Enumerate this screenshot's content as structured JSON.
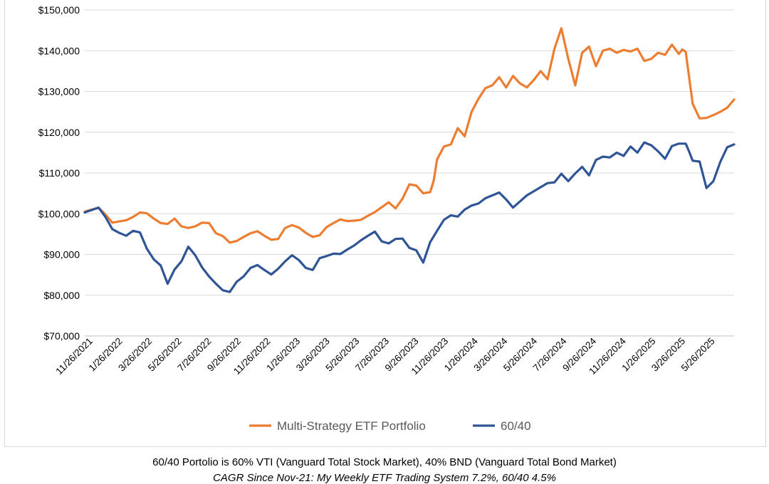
{
  "colors": {
    "multi": "#ED7D31",
    "sixty": "#2F5597",
    "grid": "#d9d9d9",
    "axis": "#bfbfbf"
  },
  "caption": {
    "line1": "60/40 Portolio is 60% VTI (Vanguard Total Stock Market), 40% BND (Vanguard Total Bond Market)",
    "line2": "CAGR Since Nov-21: My Weekly ETF Trading System 7.2%, 60/40 4.5%"
  },
  "chart_data": {
    "type": "line",
    "title": "",
    "xlabel": "",
    "ylabel": "",
    "ylim": [
      70000,
      150000
    ],
    "y_ticks": [
      70000,
      80000,
      90000,
      100000,
      110000,
      120000,
      130000,
      140000,
      150000
    ],
    "y_tick_labels": [
      "$70,000",
      "$80,000",
      "$90,000",
      "$100,000",
      "$110,000",
      "$120,000",
      "$130,000",
      "$140,000",
      "$150,000"
    ],
    "x_tick_labels": [
      "11/26/2021",
      "1/26/2022",
      "3/26/2022",
      "5/26/2022",
      "7/26/2022",
      "9/26/2022",
      "11/26/2022",
      "1/26/2023",
      "3/26/2023",
      "5/26/2023",
      "7/26/2023",
      "9/26/2023",
      "11/26/2023",
      "1/26/2024",
      "3/26/2024",
      "5/26/2024",
      "7/26/2024",
      "9/26/2024",
      "11/26/2024",
      "1/26/2025",
      "3/26/2025",
      "5/26/2025"
    ],
    "x_range": [
      "2021-11-26",
      "2025-07-04"
    ],
    "grid": "horizontal",
    "legend_position": "bottom",
    "series": [
      {
        "name": "Multi-Strategy ETF Portfolio",
        "x": [
          "2021-11-26",
          "2021-12-10",
          "2021-12-24",
          "2022-01-07",
          "2022-01-21",
          "2022-02-04",
          "2022-02-18",
          "2022-03-04",
          "2022-03-18",
          "2022-04-01",
          "2022-04-15",
          "2022-04-29",
          "2022-05-13",
          "2022-05-27",
          "2022-06-10",
          "2022-06-24",
          "2022-07-08",
          "2022-07-22",
          "2022-08-05",
          "2022-08-19",
          "2022-09-02",
          "2022-09-16",
          "2022-09-30",
          "2022-10-14",
          "2022-10-28",
          "2022-11-11",
          "2022-11-25",
          "2022-12-09",
          "2022-12-23",
          "2023-01-06",
          "2023-01-20",
          "2023-02-03",
          "2023-02-17",
          "2023-03-03",
          "2023-03-17",
          "2023-03-31",
          "2023-04-14",
          "2023-04-28",
          "2023-05-12",
          "2023-05-26",
          "2023-06-09",
          "2023-06-23",
          "2023-07-07",
          "2023-07-21",
          "2023-08-04",
          "2023-08-18",
          "2023-09-01",
          "2023-09-15",
          "2023-09-29",
          "2023-10-13",
          "2023-10-27",
          "2023-11-03",
          "2023-11-10",
          "2023-11-24",
          "2023-12-08",
          "2023-12-22",
          "2024-01-05",
          "2024-01-19",
          "2024-02-02",
          "2024-02-16",
          "2024-03-01",
          "2024-03-15",
          "2024-03-29",
          "2024-04-12",
          "2024-04-26",
          "2024-05-10",
          "2024-05-24",
          "2024-06-07",
          "2024-06-21",
          "2024-07-05",
          "2024-07-19",
          "2024-08-02",
          "2024-08-16",
          "2024-08-30",
          "2024-09-13",
          "2024-09-27",
          "2024-10-11",
          "2024-10-25",
          "2024-11-08",
          "2024-11-22",
          "2024-12-06",
          "2024-12-20",
          "2025-01-03",
          "2025-01-17",
          "2025-01-31",
          "2025-02-14",
          "2025-02-28",
          "2025-03-14",
          "2025-03-21",
          "2025-03-28",
          "2025-04-11",
          "2025-04-25",
          "2025-05-09",
          "2025-05-23",
          "2025-06-06",
          "2025-06-20",
          "2025-07-04"
        ],
        "values": [
          100500,
          101000,
          101500,
          99800,
          97800,
          98100,
          98400,
          99200,
          100300,
          100100,
          98800,
          97700,
          97500,
          98800,
          96900,
          96500,
          96900,
          97800,
          97700,
          95200,
          94500,
          92900,
          93300,
          94300,
          95200,
          95700,
          94600,
          93600,
          93800,
          96500,
          97200,
          96600,
          95300,
          94300,
          94700,
          96700,
          97700,
          98600,
          98200,
          98300,
          98500,
          99500,
          100400,
          101600,
          102800,
          101300,
          103700,
          107200,
          106900,
          105000,
          105300,
          108000,
          113300,
          116500,
          117000,
          121000,
          119000,
          125000,
          128200,
          130800,
          131500,
          133500,
          131000,
          133800,
          132000,
          131000,
          132800,
          135000,
          133000,
          140500,
          145500,
          138000,
          131500,
          139500,
          141000,
          136200,
          140000,
          140500,
          139500,
          140200,
          139800,
          140500,
          137500,
          138000,
          139500,
          139000,
          141500,
          139200,
          140300,
          139700,
          127000,
          123400,
          123500,
          124200,
          125000,
          126000,
          128000
        ]
      },
      {
        "name": "60/40",
        "x": [
          "2021-11-26",
          "2021-12-10",
          "2021-12-24",
          "2022-01-07",
          "2022-01-21",
          "2022-02-04",
          "2022-02-18",
          "2022-03-04",
          "2022-03-18",
          "2022-04-01",
          "2022-04-15",
          "2022-04-29",
          "2022-05-13",
          "2022-05-27",
          "2022-06-10",
          "2022-06-24",
          "2022-07-08",
          "2022-07-22",
          "2022-08-05",
          "2022-08-19",
          "2022-09-02",
          "2022-09-16",
          "2022-09-30",
          "2022-10-14",
          "2022-10-28",
          "2022-11-11",
          "2022-11-25",
          "2022-12-09",
          "2022-12-23",
          "2023-01-06",
          "2023-01-20",
          "2023-02-03",
          "2023-02-17",
          "2023-03-03",
          "2023-03-17",
          "2023-03-31",
          "2023-04-14",
          "2023-04-28",
          "2023-05-12",
          "2023-05-26",
          "2023-06-09",
          "2023-06-23",
          "2023-07-07",
          "2023-07-21",
          "2023-08-04",
          "2023-08-18",
          "2023-09-01",
          "2023-09-15",
          "2023-09-29",
          "2023-10-13",
          "2023-10-27",
          "2023-11-10",
          "2023-11-24",
          "2023-12-08",
          "2023-12-22",
          "2024-01-05",
          "2024-01-19",
          "2024-02-02",
          "2024-02-16",
          "2024-03-01",
          "2024-03-15",
          "2024-03-29",
          "2024-04-12",
          "2024-04-26",
          "2024-05-10",
          "2024-05-24",
          "2024-06-07",
          "2024-06-21",
          "2024-07-05",
          "2024-07-19",
          "2024-08-02",
          "2024-08-16",
          "2024-08-30",
          "2024-09-13",
          "2024-09-27",
          "2024-10-11",
          "2024-10-25",
          "2024-11-08",
          "2024-11-22",
          "2024-12-06",
          "2024-12-20",
          "2025-01-03",
          "2025-01-17",
          "2025-01-31",
          "2025-02-14",
          "2025-02-28",
          "2025-03-14",
          "2025-03-28",
          "2025-04-04",
          "2025-04-11",
          "2025-04-25",
          "2025-05-09",
          "2025-05-23",
          "2025-06-06",
          "2025-06-20",
          "2025-07-04"
        ],
        "values": [
          100300,
          100900,
          101500,
          99200,
          96200,
          95300,
          94600,
          95800,
          95400,
          91400,
          88800,
          87300,
          82800,
          86300,
          88300,
          91900,
          89800,
          86800,
          84600,
          82800,
          81200,
          80800,
          83300,
          84600,
          86700,
          87400,
          86200,
          85100,
          86500,
          88300,
          89800,
          88600,
          86700,
          86200,
          89100,
          89600,
          90200,
          90100,
          91200,
          92200,
          93500,
          94600,
          95600,
          93200,
          92700,
          93800,
          93900,
          91600,
          91000,
          88000,
          93000,
          95800,
          98500,
          99600,
          99300,
          101000,
          102000,
          102500,
          103800,
          104500,
          105200,
          103500,
          101500,
          103000,
          104500,
          105500,
          106500,
          107500,
          107700,
          109800,
          108000,
          109900,
          111500,
          109400,
          113200,
          114000,
          113800,
          115000,
          114200,
          116500,
          115000,
          117500,
          116800,
          115300,
          113500,
          116600,
          117200,
          117200,
          115200,
          113000,
          112800,
          106300,
          108000,
          112700,
          116300,
          117000
        ]
      }
    ]
  }
}
